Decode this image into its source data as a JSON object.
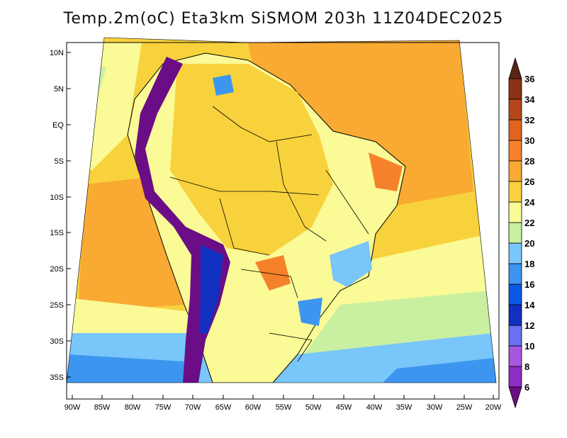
{
  "title": "Temp.2m(oC) Eta3km SiSMOM 203h 11Z04DEC2025",
  "latitude_labels": [
    "10N",
    "5N",
    "EQ",
    "5S",
    "10S",
    "15S",
    "20S",
    "25S",
    "30S",
    "35S"
  ],
  "longitude_labels": [
    "90W",
    "85W",
    "80W",
    "75W",
    "70W",
    "65W",
    "60W",
    "55W",
    "50W",
    "45W",
    "40W",
    "35W",
    "30W",
    "25W",
    "20W"
  ],
  "colorbar": {
    "labels": [
      "6",
      "8",
      "10",
      "12",
      "14",
      "16",
      "18",
      "20",
      "22",
      "24",
      "26",
      "28",
      "30",
      "32",
      "34",
      "36"
    ],
    "colors": [
      "#6a0d86",
      "#8e2dc4",
      "#a855e0",
      "#6a70f0",
      "#1230c0",
      "#0a5ae6",
      "#3c96f0",
      "#78c6fa",
      "#c8f0a0",
      "#fafa96",
      "#f8d23c",
      "#f8aa32",
      "#f5822a",
      "#e0641e",
      "#b4461a",
      "#8c3214",
      "#5a2414"
    ]
  }
}
